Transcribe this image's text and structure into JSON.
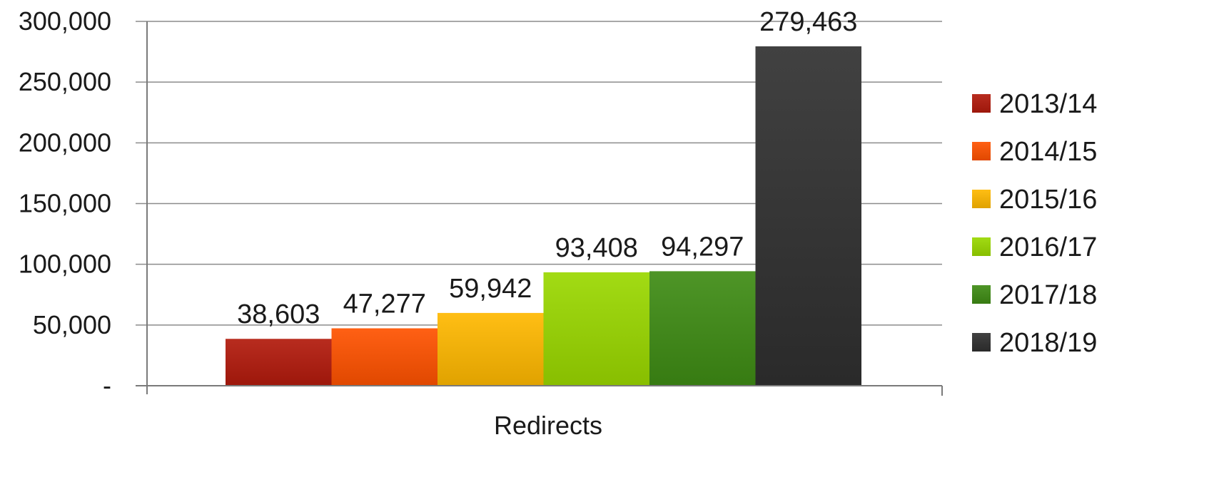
{
  "chart_data": {
    "type": "bar",
    "categories": [
      "Redirects"
    ],
    "series": [
      {
        "name": "2013/14",
        "values": [
          38603
        ],
        "label": "38,603",
        "color": "#b21a0c"
      },
      {
        "name": "2014/15",
        "values": [
          47277
        ],
        "label": "47,277",
        "color": "#ff5200"
      },
      {
        "name": "2015/16",
        "values": [
          59942
        ],
        "label": "59,942",
        "color": "#ffb800"
      },
      {
        "name": "2016/17",
        "values": [
          93408
        ],
        "label": "93,408",
        "color": "#9ad800"
      },
      {
        "name": "2017/18",
        "values": [
          94297
        ],
        "label": "94,297",
        "color": "#3f8c14"
      },
      {
        "name": "2018/19",
        "values": [
          279463
        ],
        "label": "279,463",
        "color": "#303030"
      }
    ],
    "y_ticks": [
      {
        "value": 0,
        "label": "-"
      },
      {
        "value": 50000,
        "label": "50,000"
      },
      {
        "value": 100000,
        "label": "100,000"
      },
      {
        "value": 150000,
        "label": "150,000"
      },
      {
        "value": 200000,
        "label": "200,000"
      },
      {
        "value": 250000,
        "label": "250,000"
      },
      {
        "value": 300000,
        "label": "300,000"
      }
    ],
    "ylim": [
      0,
      300000
    ],
    "grid": true,
    "legend": "right",
    "title": "",
    "xlabel": "",
    "ylabel": ""
  }
}
